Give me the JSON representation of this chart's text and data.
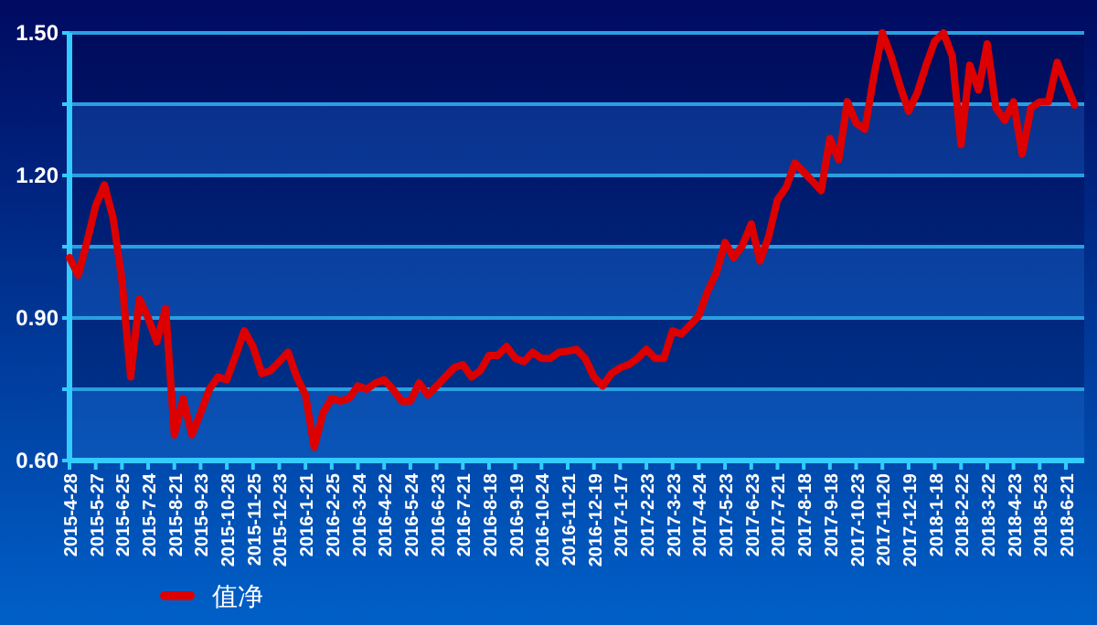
{
  "chart_data": {
    "type": "line",
    "categories": [
      "2015-4-28",
      null,
      null,
      "2015-5-27",
      null,
      null,
      "2015-6-25",
      null,
      null,
      "2015-7-24",
      null,
      null,
      "2015-8-21",
      null,
      null,
      "2015-9-23",
      null,
      null,
      "2015-10-28",
      null,
      null,
      "2015-11-25",
      null,
      null,
      "2015-12-23",
      null,
      null,
      "2016-1-21",
      null,
      null,
      "2016-2-25",
      null,
      null,
      "2016-3-24",
      null,
      null,
      "2016-4-22",
      null,
      null,
      "2016-5-24",
      null,
      null,
      "2016-6-23",
      null,
      null,
      "2016-7-21",
      null,
      null,
      "2016-8-18",
      null,
      null,
      "2016-9-19",
      null,
      null,
      "2016-10-24",
      null,
      null,
      "2016-11-21",
      null,
      null,
      "2016-12-19",
      null,
      null,
      "2017-1-17",
      null,
      null,
      "2017-2-23",
      null,
      null,
      "2017-3-23",
      null,
      null,
      "2017-4-24",
      null,
      null,
      "2017-5-23",
      null,
      null,
      "2017-6-23",
      null,
      null,
      "2017-7-21",
      null,
      null,
      "2017-8-18",
      null,
      null,
      "2017-9-18",
      null,
      null,
      "2017-10-23",
      null,
      null,
      "2017-11-20",
      null,
      null,
      "2017-12-19",
      null,
      null,
      "2018-1-18",
      null,
      null,
      "2018-2-22",
      null,
      null,
      "2018-3-22",
      null,
      null,
      "2018-4-23",
      null,
      null,
      "2018-5-23",
      null,
      null,
      "2018-6-21",
      null
    ],
    "series": [
      {
        "name": "值净",
        "color": "#dd0000",
        "values": [
          1.027,
          0.99,
          1.06,
          1.136,
          1.18,
          1.11,
          0.98,
          0.776,
          0.94,
          0.9,
          0.85,
          0.92,
          0.654,
          0.73,
          0.654,
          0.7,
          0.75,
          0.776,
          0.77,
          0.82,
          0.873,
          0.84,
          0.783,
          0.789,
          0.808,
          0.828,
          0.776,
          0.738,
          0.628,
          0.7,
          0.731,
          0.725,
          0.731,
          0.757,
          0.75,
          0.763,
          0.77,
          0.75,
          0.725,
          0.725,
          0.763,
          0.738,
          0.757,
          0.776,
          0.795,
          0.802,
          0.776,
          0.789,
          0.821,
          0.821,
          0.84,
          0.815,
          0.808,
          0.828,
          0.815,
          0.815,
          0.828,
          0.83,
          0.834,
          0.815,
          0.776,
          0.757,
          0.783,
          0.795,
          0.802,
          0.815,
          0.834,
          0.815,
          0.815,
          0.873,
          0.866,
          0.885,
          0.905,
          0.956,
          0.995,
          1.059,
          1.027,
          1.053,
          1.098,
          1.02,
          1.072,
          1.149,
          1.175,
          1.226,
          1.207,
          1.188,
          1.168,
          1.278,
          1.233,
          1.355,
          1.31,
          1.297,
          1.406,
          1.5,
          1.451,
          1.39,
          1.335,
          1.374,
          1.432,
          1.483,
          1.5,
          1.451,
          1.265,
          1.432,
          1.38,
          1.477,
          1.342,
          1.316,
          1.355,
          1.245,
          1.342,
          1.355,
          1.355,
          1.438,
          1.393,
          1.348
        ]
      }
    ],
    "ylim": [
      0.6,
      1.5
    ],
    "yticks": [
      {
        "value": 0.6,
        "label": "0.60"
      },
      {
        "value": 0.75,
        "label": null
      },
      {
        "value": 0.9,
        "label": "0.90"
      },
      {
        "value": 1.05,
        "label": null
      },
      {
        "value": 1.2,
        "label": "1.20"
      },
      {
        "value": 1.35,
        "label": null
      },
      {
        "value": 1.5,
        "label": "1.50"
      }
    ],
    "grid": "y",
    "legend": "bottom",
    "marker": "none",
    "line_style": "solid"
  }
}
